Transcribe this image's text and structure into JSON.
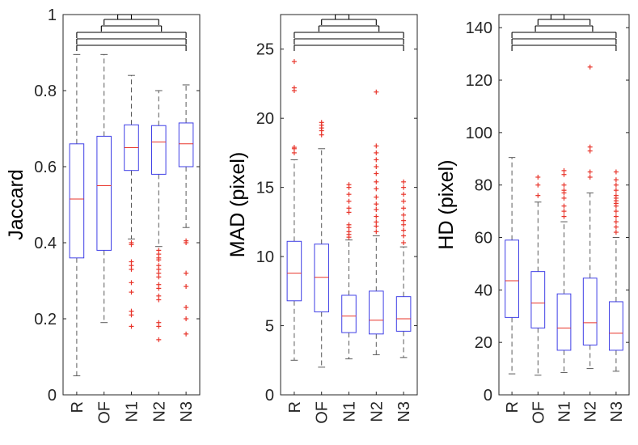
{
  "chart_data": [
    {
      "type": "boxplot",
      "title": "",
      "xlabel": "",
      "ylabel": "Jaccard",
      "categories": [
        "R",
        "OF",
        "N1",
        "N2",
        "N3"
      ],
      "ylim": [
        0,
        1
      ],
      "yticks": [
        0,
        0.2,
        0.4,
        0.6,
        0.8,
        1
      ],
      "ytick_labels": [
        "0",
        "0.2",
        "0.4",
        "0.6",
        "0.8",
        "1"
      ],
      "boxes": [
        {
          "whisker_low": 0.05,
          "q1": 0.36,
          "median": 0.515,
          "q3": 0.66,
          "whisker_high": 0.895,
          "outliers": []
        },
        {
          "whisker_low": 0.19,
          "q1": 0.38,
          "median": 0.55,
          "q3": 0.68,
          "whisker_high": 0.895,
          "outliers": []
        },
        {
          "whisker_low": 0.41,
          "q1": 0.59,
          "median": 0.65,
          "q3": 0.71,
          "whisker_high": 0.84,
          "outliers": [
            0.4,
            0.395,
            0.35,
            0.34,
            0.33,
            0.295,
            0.27,
            0.22,
            0.21,
            0.18
          ]
        },
        {
          "whisker_low": 0.39,
          "q1": 0.58,
          "median": 0.665,
          "q3": 0.708,
          "whisker_high": 0.8,
          "outliers": [
            0.38,
            0.37,
            0.36,
            0.355,
            0.34,
            0.33,
            0.32,
            0.31,
            0.29,
            0.28,
            0.26,
            0.25,
            0.19,
            0.18,
            0.145
          ]
        },
        {
          "whisker_low": 0.44,
          "q1": 0.6,
          "median": 0.66,
          "q3": 0.715,
          "whisker_high": 0.815,
          "outliers": [
            0.405,
            0.4,
            0.32,
            0.285,
            0.23,
            0.2,
            0.16
          ]
        }
      ],
      "significance_brackets": 5
    },
    {
      "type": "boxplot",
      "title": "",
      "xlabel": "",
      "ylabel": "MAD (pixel)",
      "categories": [
        "R",
        "OF",
        "N1",
        "N2",
        "N3"
      ],
      "ylim": [
        0,
        27.5
      ],
      "yticks": [
        0,
        5,
        10,
        15,
        20,
        25
      ],
      "ytick_labels": [
        "0",
        "5",
        "10",
        "15",
        "20",
        "25"
      ],
      "boxes": [
        {
          "whisker_low": 2.5,
          "q1": 6.8,
          "median": 8.8,
          "q3": 11.1,
          "whisker_high": 17.0,
          "outliers": [
            17.5,
            17.8,
            17.9,
            22.0,
            22.2,
            24.1
          ]
        },
        {
          "whisker_low": 2.0,
          "q1": 6.0,
          "median": 8.5,
          "q3": 10.9,
          "whisker_high": 17.8,
          "outliers": [
            18.8,
            19.1,
            19.3,
            19.5,
            19.7
          ]
        },
        {
          "whisker_low": 2.6,
          "q1": 4.5,
          "median": 5.7,
          "q3": 7.2,
          "whisker_high": 11.2,
          "outliers": [
            11.4,
            11.6,
            11.8,
            12.1,
            12.3,
            13.2,
            13.5,
            14.0,
            14.5,
            15.0,
            15.2
          ]
        },
        {
          "whisker_low": 2.9,
          "q1": 4.4,
          "median": 5.4,
          "q3": 7.5,
          "whisker_high": 11.5,
          "outliers": [
            11.8,
            12.2,
            12.5,
            12.9,
            13.4,
            13.8,
            14.3,
            14.9,
            15.4,
            16.0,
            16.5,
            17.0,
            17.5,
            18.0,
            21.9
          ]
        },
        {
          "whisker_low": 2.7,
          "q1": 4.6,
          "median": 5.5,
          "q3": 7.1,
          "whisker_high": 10.7,
          "outliers": [
            11.0,
            11.5,
            11.9,
            12.3,
            12.6,
            13.0,
            13.5,
            14.0,
            14.5,
            15.0,
            15.4
          ]
        }
      ],
      "significance_brackets": 5
    },
    {
      "type": "boxplot",
      "title": "",
      "xlabel": "",
      "ylabel": "HD (pixel)",
      "categories": [
        "R",
        "OF",
        "N1",
        "N2",
        "N3"
      ],
      "ylim": [
        0,
        145
      ],
      "yticks": [
        0,
        20,
        40,
        60,
        80,
        100,
        120,
        140
      ],
      "ytick_labels": [
        "0",
        "20",
        "40",
        "60",
        "80",
        "100",
        "120",
        "140"
      ],
      "boxes": [
        {
          "whisker_low": 8.0,
          "q1": 29.5,
          "median": 43.5,
          "q3": 59.0,
          "whisker_high": 90.5,
          "outliers": []
        },
        {
          "whisker_low": 7.5,
          "q1": 25.5,
          "median": 35.0,
          "q3": 47.0,
          "whisker_high": 73.5,
          "outliers": [
            76.0,
            80.0,
            83.0
          ]
        },
        {
          "whisker_low": 8.5,
          "q1": 17.0,
          "median": 25.5,
          "q3": 38.5,
          "whisker_high": 66.0,
          "outliers": [
            68.0,
            70.0,
            72.0,
            75.0,
            77.0,
            78.0,
            80.0,
            84.0,
            85.5
          ]
        },
        {
          "whisker_low": 10.0,
          "q1": 19.0,
          "median": 27.5,
          "q3": 44.5,
          "whisker_high": 77.0,
          "outliers": [
            83.0,
            85.0,
            93.0,
            94.5,
            125.0
          ]
        },
        {
          "whisker_low": 9.0,
          "q1": 17.0,
          "median": 23.5,
          "q3": 35.5,
          "whisker_high": 60.0,
          "outliers": [
            62.0,
            64.0,
            66.0,
            68.0,
            70.0,
            72.0,
            73.0,
            74.0,
            75.0,
            76.0,
            78.0,
            80.0,
            82.0,
            85.0
          ]
        }
      ],
      "significance_brackets": 5
    }
  ]
}
